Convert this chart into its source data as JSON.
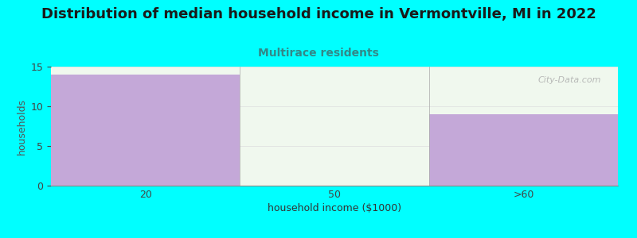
{
  "title": "Distribution of median household income in Vermontville, MI in 2022",
  "subtitle": "Multirace residents",
  "xlabel": "household income ($1000)",
  "ylabel": "households",
  "categories": [
    "20",
    "50",
    ">60"
  ],
  "values": [
    14,
    0,
    9
  ],
  "bar_colors": [
    "#c4a8d8",
    "#daf0d8",
    "#c4a8d8"
  ],
  "ylim": [
    0,
    15
  ],
  "yticks": [
    0,
    5,
    10,
    15
  ],
  "background_color": "#00ffff",
  "plot_bg_top": "#f0f8f0",
  "plot_bg_bottom": "#e8f8e8",
  "title_fontsize": 13,
  "subtitle_fontsize": 10,
  "subtitle_color": "#338888",
  "axis_label_fontsize": 9,
  "tick_fontsize": 9,
  "watermark": "City-Data.com"
}
